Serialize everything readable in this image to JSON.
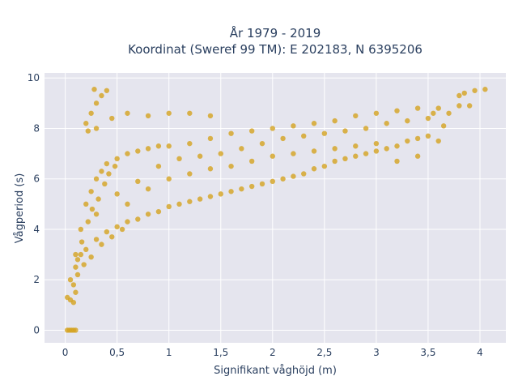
{
  "chart_data": {
    "type": "scatter",
    "title_line1": "År 1979 - 2019",
    "title_line2": "Koordinat (Sweref 99 TM): E 202183, N 6395206",
    "xlabel": "Signifikant våghöjd (m)",
    "ylabel": "Vågperiod (s)",
    "xlim": [
      -0.2,
      4.25
    ],
    "ylim": [
      -0.5,
      10.2
    ],
    "grid": true,
    "plot_background": "#e5e5ee",
    "marker_color": "#d4a21f",
    "x_ticks": [
      0,
      0.5,
      1,
      1.5,
      2,
      2.5,
      3,
      3.5,
      4
    ],
    "x_tick_labels": [
      "0",
      "0,5",
      "1",
      "1,5",
      "2",
      "2,5",
      "3",
      "3,5",
      "4"
    ],
    "y_ticks": [
      0,
      2,
      4,
      6,
      8,
      10
    ],
    "y_tick_labels": [
      "0",
      "2",
      "4",
      "6",
      "8",
      "10"
    ],
    "points": [
      [
        0.02,
        0.0
      ],
      [
        0.04,
        0.0
      ],
      [
        0.06,
        0.0
      ],
      [
        0.08,
        0.0
      ],
      [
        0.1,
        0.0
      ],
      [
        0.02,
        1.3
      ],
      [
        0.05,
        1.2
      ],
      [
        0.08,
        1.1
      ],
      [
        0.1,
        1.5
      ],
      [
        0.05,
        2.0
      ],
      [
        0.1,
        2.5
      ],
      [
        0.15,
        3.0
      ],
      [
        0.2,
        3.2
      ],
      [
        0.3,
        3.6
      ],
      [
        0.4,
        3.9
      ],
      [
        0.5,
        4.1
      ],
      [
        0.6,
        4.3
      ],
      [
        0.8,
        4.6
      ],
      [
        1.0,
        4.9
      ],
      [
        1.2,
        5.1
      ],
      [
        1.4,
        5.3
      ],
      [
        1.6,
        5.5
      ],
      [
        1.8,
        5.7
      ],
      [
        2.0,
        5.9
      ],
      [
        2.2,
        6.1
      ],
      [
        2.4,
        6.4
      ],
      [
        2.6,
        6.7
      ],
      [
        2.8,
        6.9
      ],
      [
        3.0,
        7.1
      ],
      [
        3.2,
        7.3
      ],
      [
        3.4,
        7.6
      ],
      [
        0.1,
        3.0
      ],
      [
        0.15,
        4.0
      ],
      [
        0.2,
        5.0
      ],
      [
        0.25,
        5.5
      ],
      [
        0.3,
        6.0
      ],
      [
        0.35,
        6.3
      ],
      [
        0.4,
        6.6
      ],
      [
        0.5,
        6.8
      ],
      [
        0.6,
        7.0
      ],
      [
        0.7,
        7.1
      ],
      [
        0.8,
        7.2
      ],
      [
        0.9,
        7.3
      ],
      [
        1.0,
        7.3
      ],
      [
        1.2,
        7.4
      ],
      [
        1.4,
        7.6
      ],
      [
        1.6,
        7.8
      ],
      [
        1.8,
        7.9
      ],
      [
        2.0,
        8.0
      ],
      [
        2.2,
        8.1
      ],
      [
        2.4,
        8.2
      ],
      [
        2.6,
        8.3
      ],
      [
        2.8,
        8.5
      ],
      [
        3.0,
        8.6
      ],
      [
        3.2,
        8.7
      ],
      [
        3.4,
        8.8
      ],
      [
        3.6,
        8.8
      ],
      [
        3.8,
        8.9
      ],
      [
        3.85,
        9.4
      ],
      [
        3.95,
        9.5
      ],
      [
        4.05,
        9.55
      ],
      [
        0.2,
        8.2
      ],
      [
        0.25,
        8.6
      ],
      [
        0.3,
        9.0
      ],
      [
        0.35,
        9.3
      ],
      [
        0.4,
        9.5
      ],
      [
        0.28,
        9.55
      ],
      [
        0.22,
        7.9
      ],
      [
        0.3,
        8.0
      ],
      [
        0.45,
        8.4
      ],
      [
        0.6,
        8.6
      ],
      [
        0.8,
        8.5
      ],
      [
        1.0,
        8.6
      ],
      [
        1.2,
        8.6
      ],
      [
        1.4,
        8.5
      ],
      [
        0.6,
        5.0
      ],
      [
        0.8,
        5.6
      ],
      [
        1.0,
        6.0
      ],
      [
        1.2,
        6.2
      ],
      [
        1.4,
        6.4
      ],
      [
        1.6,
        6.5
      ],
      [
        1.8,
        6.7
      ],
      [
        2.0,
        6.9
      ],
      [
        2.2,
        7.0
      ],
      [
        2.4,
        7.1
      ],
      [
        2.6,
        7.2
      ],
      [
        2.8,
        7.3
      ],
      [
        3.0,
        7.4
      ],
      [
        0.3,
        4.6
      ],
      [
        0.5,
        5.4
      ],
      [
        0.7,
        5.9
      ],
      [
        0.9,
        6.5
      ],
      [
        1.1,
        6.8
      ],
      [
        1.3,
        6.9
      ],
      [
        1.5,
        7.0
      ],
      [
        1.7,
        7.2
      ],
      [
        1.9,
        7.4
      ],
      [
        2.1,
        7.6
      ],
      [
        2.3,
        7.7
      ],
      [
        2.5,
        7.8
      ],
      [
        2.7,
        7.9
      ],
      [
        2.9,
        8.0
      ],
      [
        3.1,
        8.2
      ],
      [
        3.3,
        8.3
      ],
      [
        3.5,
        8.4
      ],
      [
        3.7,
        8.6
      ],
      [
        0.12,
        2.2
      ],
      [
        0.18,
        2.6
      ],
      [
        0.25,
        2.9
      ],
      [
        0.35,
        3.4
      ],
      [
        0.45,
        3.7
      ],
      [
        0.55,
        4.0
      ],
      [
        0.7,
        4.4
      ],
      [
        0.9,
        4.7
      ],
      [
        1.1,
        5.0
      ],
      [
        1.3,
        5.2
      ],
      [
        1.5,
        5.4
      ],
      [
        1.7,
        5.6
      ],
      [
        1.9,
        5.8
      ],
      [
        2.1,
        6.0
      ],
      [
        2.3,
        6.2
      ],
      [
        2.5,
        6.5
      ],
      [
        2.7,
        6.8
      ],
      [
        2.9,
        7.0
      ],
      [
        3.1,
        7.2
      ],
      [
        3.3,
        7.5
      ],
      [
        3.5,
        7.7
      ],
      [
        0.08,
        1.8
      ],
      [
        0.12,
        2.8
      ],
      [
        0.16,
        3.5
      ],
      [
        0.22,
        4.3
      ],
      [
        0.26,
        4.8
      ],
      [
        0.32,
        5.2
      ],
      [
        0.38,
        5.8
      ],
      [
        0.42,
        6.2
      ],
      [
        0.48,
        6.5
      ],
      [
        3.6,
        7.5
      ],
      [
        3.4,
        6.9
      ],
      [
        3.2,
        6.7
      ],
      [
        3.8,
        9.3
      ],
      [
        3.9,
        8.9
      ],
      [
        3.65,
        8.1
      ],
      [
        3.55,
        8.6
      ]
    ]
  }
}
